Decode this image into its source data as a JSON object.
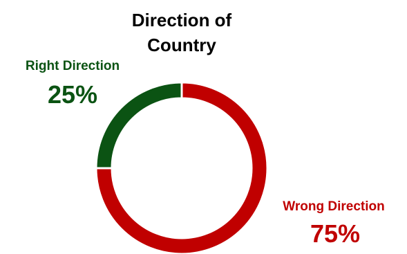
{
  "chart_data": {
    "type": "pie",
    "title_lines": [
      "Direction of",
      "Country"
    ],
    "slices": [
      {
        "label": "Right Direction",
        "value": 25,
        "display": "25%",
        "color": "#0b5313"
      },
      {
        "label": "Wrong Direction",
        "value": 75,
        "display": "75%",
        "color": "#c00000"
      }
    ]
  }
}
